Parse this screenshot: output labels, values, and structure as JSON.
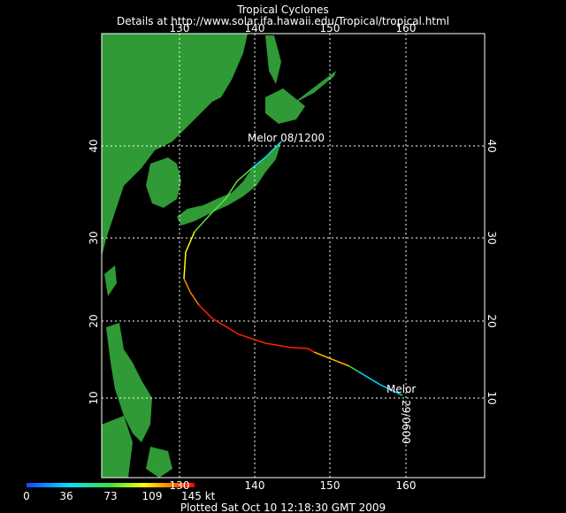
{
  "header": {
    "title": "Tropical Cyclones",
    "subtitle": "Details at http://www.solar.ifa.hawaii.edu/Tropical/tropical.html"
  },
  "map": {
    "lon_ticks": [
      130,
      140,
      150,
      160
    ],
    "lat_ticks": [
      10,
      20,
      30,
      40
    ],
    "storm": {
      "end_label": "Melor 08/1200",
      "start_label": "Melor",
      "start_time": "29/0600"
    }
  },
  "legend": {
    "labels": [
      "0",
      "36",
      "73",
      "109",
      "145 kt"
    ]
  },
  "footer": "Plotted Sat Oct 10 12:18:30 GMT 2009"
}
